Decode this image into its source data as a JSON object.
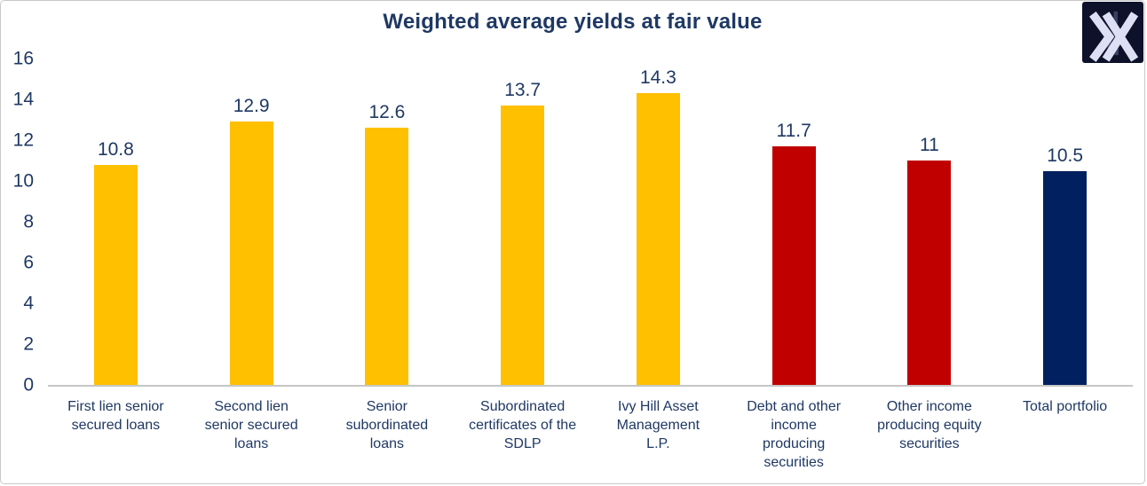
{
  "chart_data": {
    "type": "bar",
    "title": "Weighted average yields at fair value",
    "categories": [
      "First lien senior\nsecured loans",
      "Second lien\nsenior secured\nloans",
      "Senior\nsubordinated\nloans",
      "Subordinated\ncertificates of the\nSDLP",
      "Ivy Hill Asset\nManagement\nL.P.",
      "Debt and other\nincome\nproducing\nsecurities",
      "Other income\nproducing equity\nsecurities",
      "Total portfolio"
    ],
    "values": [
      10.8,
      12.9,
      12.6,
      13.7,
      14.3,
      11.7,
      11,
      10.5
    ],
    "value_labels": [
      "10.8",
      "12.9",
      "12.6",
      "13.7",
      "14.3",
      "11.7",
      "11",
      "10.5"
    ],
    "bar_colors": [
      "#FFC000",
      "#FFC000",
      "#FFC000",
      "#FFC000",
      "#FFC000",
      "#C00000",
      "#C00000",
      "#002060"
    ],
    "xlabel": "",
    "ylabel": "",
    "ylim": [
      0,
      16
    ],
    "yticks": [
      0,
      2,
      4,
      6,
      8,
      10,
      12,
      14,
      16
    ],
    "grid": false,
    "legend": "none",
    "text_color": "#1F3864",
    "axis_line_color": "#C6C6C6"
  },
  "logo": {
    "icon": "double-x-logo-icon",
    "background": "#0D1129",
    "glyph_color": "#DDDFF5",
    "faint_bar_color": "#3A4061"
  }
}
